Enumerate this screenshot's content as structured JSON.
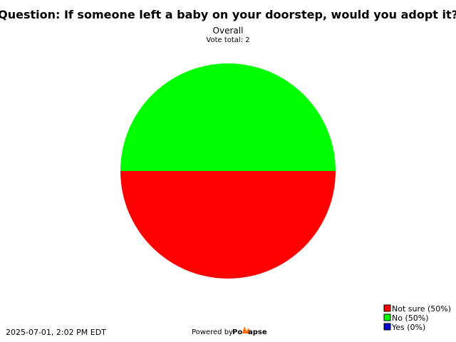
{
  "chart_data": {
    "type": "pie",
    "title": "Question: If someone left a baby on your doorstep, would you adopt it?",
    "subtitle": "Overall",
    "vote_total_label": "Vote total: 2",
    "slices": [
      {
        "label": "Not sure (50%)",
        "value": 50,
        "color": "#ff0000"
      },
      {
        "label": "No (50%)",
        "value": 50,
        "color": "#00ff00"
      },
      {
        "label": "Yes (0%)",
        "value": 0,
        "color": "#0000cc"
      }
    ]
  },
  "footer": {
    "timestamp": "2025-07-01, 2:02 PM EDT",
    "powered_by": "Powered by",
    "brand_left": "Po",
    "brand_right": "apse"
  }
}
